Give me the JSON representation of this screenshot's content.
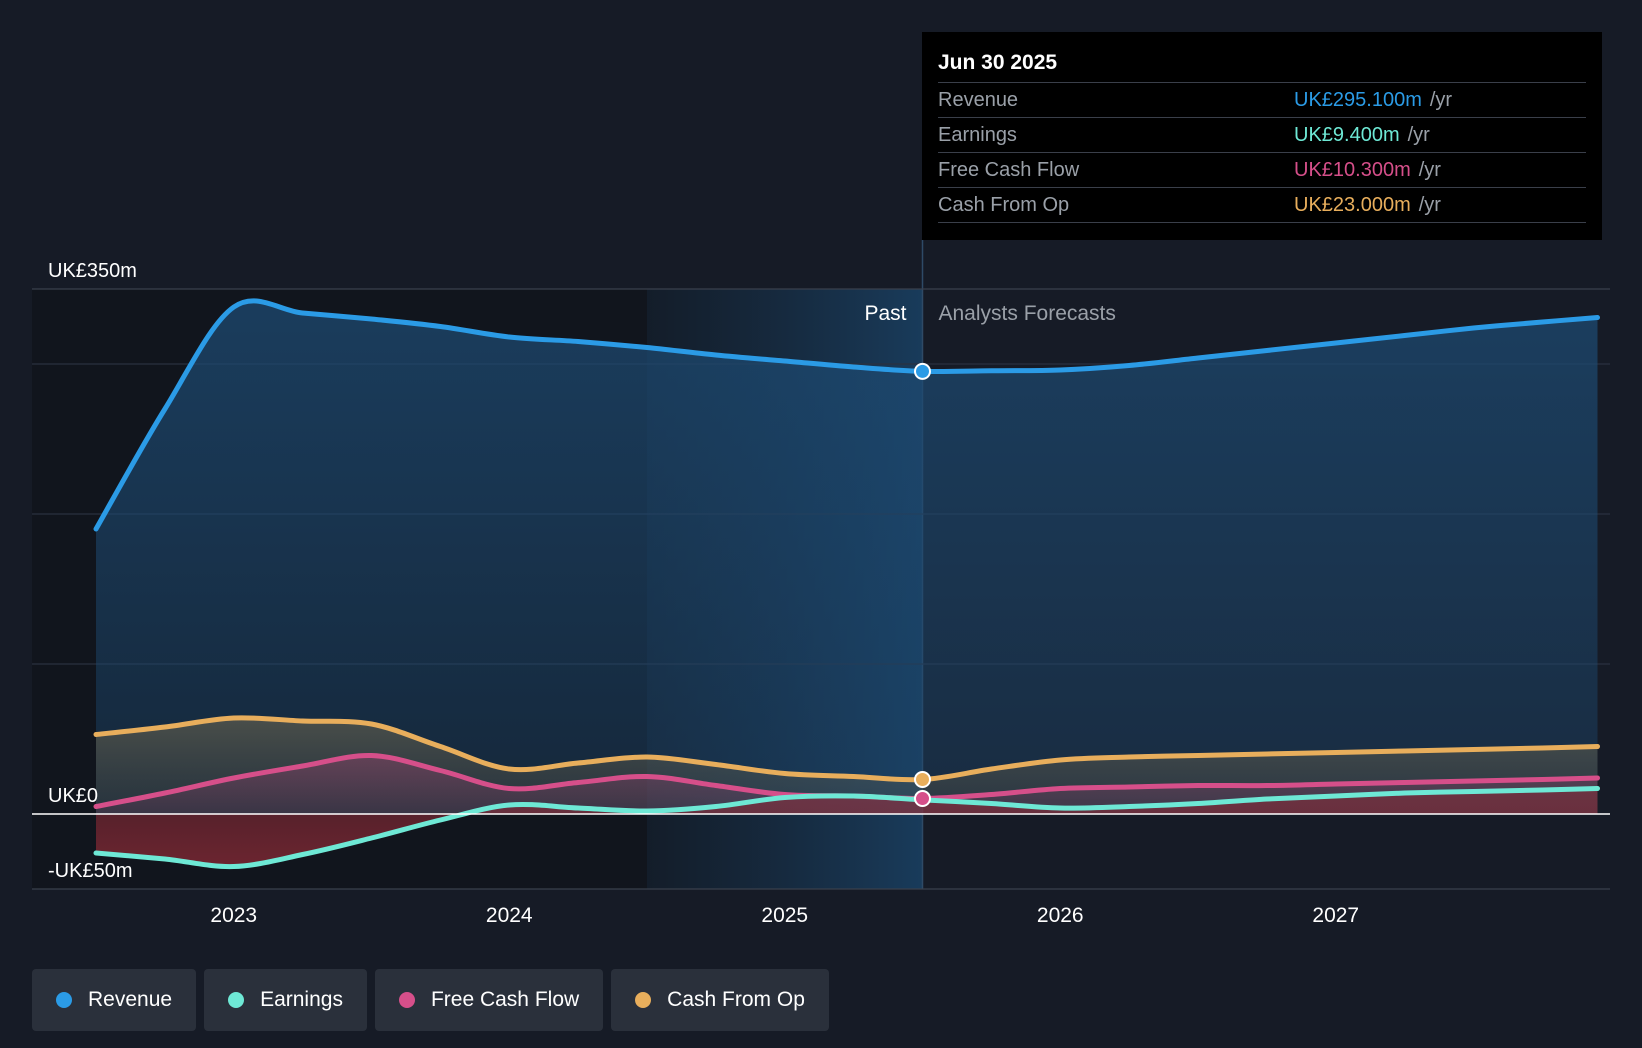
{
  "chart_data": {
    "type": "area",
    "x_ticks": [
      "2023",
      "2024",
      "2025",
      "2026",
      "2027"
    ],
    "y_ticks": [
      {
        "value": 350,
        "label": "UK£350m"
      },
      {
        "value": 0,
        "label": "UK£0"
      },
      {
        "value": -50,
        "label": "-UK£50m"
      }
    ],
    "ylim": [
      -50,
      350
    ],
    "xlim": [
      2022.5,
      2027.95
    ],
    "past_label": "Past",
    "forecast_label": "Analysts Forecasts",
    "divider_x": 2025.5,
    "series": [
      {
        "name": "Revenue",
        "color": "#2b9be6",
        "points": [
          [
            2022.5,
            190
          ],
          [
            2022.75,
            270
          ],
          [
            2023.0,
            338
          ],
          [
            2023.25,
            334
          ],
          [
            2023.5,
            330
          ],
          [
            2023.75,
            325
          ],
          [
            2024.0,
            318
          ],
          [
            2024.25,
            315
          ],
          [
            2024.5,
            311
          ],
          [
            2024.75,
            306
          ],
          [
            2025.0,
            302
          ],
          [
            2025.25,
            298
          ],
          [
            2025.5,
            295.1
          ],
          [
            2025.75,
            295.5
          ],
          [
            2026.0,
            296
          ],
          [
            2026.25,
            299
          ],
          [
            2026.5,
            304
          ],
          [
            2026.75,
            309
          ],
          [
            2027.0,
            314
          ],
          [
            2027.25,
            319
          ],
          [
            2027.5,
            324
          ],
          [
            2027.75,
            328
          ],
          [
            2027.95,
            331
          ]
        ]
      },
      {
        "name": "Earnings",
        "color": "#6ee8d5",
        "points": [
          [
            2022.5,
            -26
          ],
          [
            2022.75,
            -30
          ],
          [
            2023.0,
            -35
          ],
          [
            2023.25,
            -27
          ],
          [
            2023.5,
            -16
          ],
          [
            2023.75,
            -4
          ],
          [
            2024.0,
            6
          ],
          [
            2024.25,
            4
          ],
          [
            2024.5,
            2
          ],
          [
            2024.75,
            5
          ],
          [
            2025.0,
            11
          ],
          [
            2025.25,
            12
          ],
          [
            2025.5,
            9.4
          ],
          [
            2025.75,
            7
          ],
          [
            2026.0,
            4
          ],
          [
            2026.25,
            5
          ],
          [
            2026.5,
            7
          ],
          [
            2026.75,
            10
          ],
          [
            2027.0,
            12
          ],
          [
            2027.25,
            14
          ],
          [
            2027.5,
            15
          ],
          [
            2027.75,
            16
          ],
          [
            2027.95,
            17
          ]
        ]
      },
      {
        "name": "Free Cash Flow",
        "color": "#d64f8a",
        "points": [
          [
            2022.5,
            5
          ],
          [
            2022.75,
            14
          ],
          [
            2023.0,
            24
          ],
          [
            2023.25,
            32
          ],
          [
            2023.5,
            39
          ],
          [
            2023.75,
            29
          ],
          [
            2024.0,
            17
          ],
          [
            2024.25,
            21
          ],
          [
            2024.5,
            25
          ],
          [
            2024.75,
            19
          ],
          [
            2025.0,
            13
          ],
          [
            2025.25,
            12
          ],
          [
            2025.5,
            10.3
          ],
          [
            2025.75,
            13
          ],
          [
            2026.0,
            17
          ],
          [
            2026.25,
            18
          ],
          [
            2026.5,
            19
          ],
          [
            2026.75,
            19
          ],
          [
            2027.0,
            20
          ],
          [
            2027.25,
            21
          ],
          [
            2027.5,
            22
          ],
          [
            2027.75,
            23
          ],
          [
            2027.95,
            24
          ]
        ]
      },
      {
        "name": "Cash From Op",
        "color": "#e8ae5c",
        "points": [
          [
            2022.5,
            53
          ],
          [
            2022.75,
            58
          ],
          [
            2023.0,
            64
          ],
          [
            2023.25,
            62
          ],
          [
            2023.5,
            60
          ],
          [
            2023.75,
            45
          ],
          [
            2024.0,
            30
          ],
          [
            2024.25,
            34
          ],
          [
            2024.5,
            38
          ],
          [
            2024.75,
            33
          ],
          [
            2025.0,
            27
          ],
          [
            2025.25,
            25
          ],
          [
            2025.5,
            23.0
          ],
          [
            2025.75,
            30
          ],
          [
            2026.0,
            36
          ],
          [
            2026.25,
            38
          ],
          [
            2026.5,
            39
          ],
          [
            2026.75,
            40
          ],
          [
            2027.0,
            41
          ],
          [
            2027.25,
            42
          ],
          [
            2027.5,
            43
          ],
          [
            2027.75,
            44
          ],
          [
            2027.95,
            45
          ]
        ]
      }
    ]
  },
  "tooltip": {
    "date": "Jun 30 2025",
    "rows": [
      {
        "label": "Revenue",
        "value": "UK£295.100m",
        "unit": "/yr",
        "color": "#2b9be6"
      },
      {
        "label": "Earnings",
        "value": "UK£9.400m",
        "unit": "/yr",
        "color": "#6ee8d5"
      },
      {
        "label": "Free Cash Flow",
        "value": "UK£10.300m",
        "unit": "/yr",
        "color": "#d64f8a"
      },
      {
        "label": "Cash From Op",
        "value": "UK£23.000m",
        "unit": "/yr",
        "color": "#e8ae5c"
      }
    ]
  },
  "legend": [
    {
      "label": "Revenue",
      "color": "#2b9be6"
    },
    {
      "label": "Earnings",
      "color": "#6ee8d5"
    },
    {
      "label": "Free Cash Flow",
      "color": "#d64f8a"
    },
    {
      "label": "Cash From Op",
      "color": "#e8ae5c"
    }
  ]
}
